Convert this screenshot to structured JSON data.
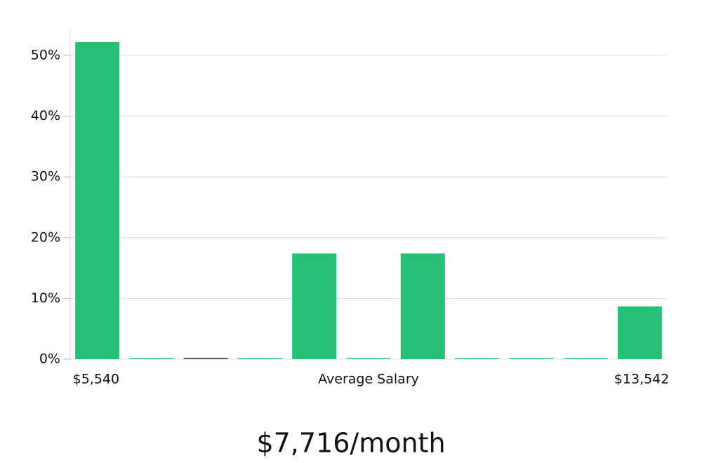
{
  "chart_data": {
    "type": "bar",
    "categories": [
      "$5,540",
      null,
      null,
      null,
      null,
      null,
      null,
      null,
      null,
      null,
      "$13,542"
    ],
    "values": [
      52.2,
      0,
      0,
      0,
      17.4,
      0,
      17.4,
      0,
      0,
      0,
      8.7
    ],
    "colors": [
      "#27c077",
      "#27c077",
      "#222222",
      "#27c077",
      "#27c077",
      "#27c077",
      "#27c077",
      "#27c077",
      "#27c077",
      "#27c077",
      "#27c077"
    ],
    "x_label": "Average Salary",
    "annotation": "$7,716/month",
    "ylim": [
      0,
      54.5
    ],
    "yticks": [
      {
        "value": 0,
        "label": "0%"
      },
      {
        "value": 10,
        "label": "10%"
      },
      {
        "value": 20,
        "label": "20%"
      },
      {
        "value": 30,
        "label": "30%"
      },
      {
        "value": 40,
        "label": "40%"
      },
      {
        "value": 50,
        "label": "50%"
      }
    ],
    "grid": true
  }
}
